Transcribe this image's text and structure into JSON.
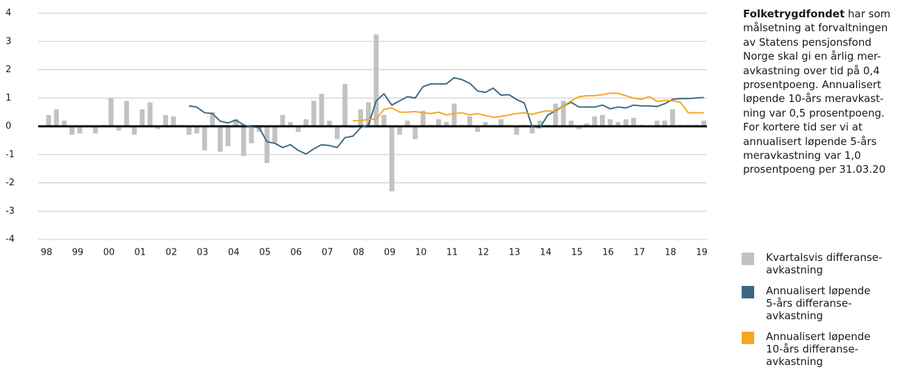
{
  "chart_data": {
    "type": "bar",
    "categories": [
      "98",
      null,
      null,
      null,
      "99",
      null,
      null,
      null,
      "00",
      null,
      null,
      null,
      "01",
      null,
      null,
      null,
      "02",
      null,
      null,
      null,
      "03",
      null,
      null,
      null,
      "04",
      null,
      null,
      null,
      "05",
      null,
      null,
      null,
      "06",
      null,
      null,
      null,
      "07",
      null,
      null,
      null,
      "08",
      null,
      null,
      null,
      "09",
      null,
      null,
      null,
      "10",
      null,
      null,
      null,
      "11",
      null,
      null,
      null,
      "12",
      null,
      null,
      null,
      "13",
      null,
      null,
      null,
      "14",
      null,
      null,
      null,
      "15",
      null,
      null,
      null,
      "16",
      null,
      null,
      null,
      "17",
      null,
      null,
      null,
      "18",
      null,
      null,
      null,
      "19"
    ],
    "series": [
      {
        "name": "Kvartalsvis differanse-\navkastning",
        "type": "bar",
        "color": "#c2c2c2",
        "values": [
          0.4,
          0.6,
          0.2,
          -0.3,
          -0.25,
          0,
          -0.25,
          0.05,
          1.0,
          -0.15,
          0.9,
          -0.3,
          0.6,
          0.85,
          -0.1,
          0.4,
          0.35,
          0.05,
          -0.3,
          -0.25,
          -0.85,
          0.5,
          -0.9,
          -0.7,
          0.25,
          -1.05,
          -0.6,
          -0.2,
          -1.3,
          -0.6,
          0.4,
          0.15,
          -0.2,
          0.25,
          0.9,
          1.15,
          0.2,
          -0.45,
          1.5,
          -0.05,
          0.6,
          0.85,
          3.25,
          0.4,
          -2.3,
          -0.3,
          0.2,
          -0.45,
          0.55,
          0.05,
          0.25,
          0.15,
          0.8,
          0.05,
          0.35,
          -0.2,
          0.15,
          0.05,
          0.25,
          0.05,
          -0.3,
          0.05,
          -0.25,
          0.2,
          0.05,
          0.8,
          0.9,
          0.2,
          -0.1,
          0.1,
          0.35,
          0.4,
          0.25,
          0.15,
          0.25,
          0.3,
          0.05,
          0,
          0.2,
          0.2,
          0.6,
          0.05,
          0.05,
          0.05,
          0.2
        ]
      },
      {
        "name": "Annualisert løpende\n5-års differanse-\navkastning",
        "type": "line",
        "color": "#3d6882",
        "values": [
          null,
          null,
          null,
          null,
          null,
          null,
          null,
          null,
          null,
          null,
          null,
          null,
          null,
          null,
          null,
          null,
          null,
          null,
          0.72,
          0.68,
          0.48,
          0.45,
          0.18,
          0.12,
          0.22,
          0.05,
          -0.02,
          -0.05,
          -0.55,
          -0.6,
          -0.75,
          -0.65,
          -0.85,
          -0.98,
          -0.8,
          -0.65,
          -0.68,
          -0.75,
          -0.4,
          -0.35,
          -0.05,
          0.05,
          0.9,
          1.15,
          0.75,
          0.9,
          1.05,
          1.0,
          1.4,
          1.5,
          1.5,
          1.5,
          1.72,
          1.65,
          1.52,
          1.25,
          1.2,
          1.35,
          1.1,
          1.12,
          0.95,
          0.82,
          -0.02,
          -0.05,
          0.4,
          0.55,
          0.72,
          0.85,
          0.68,
          0.68,
          0.68,
          0.75,
          0.62,
          0.68,
          0.65,
          0.75,
          0.72,
          0.72,
          0.7,
          0.8,
          0.95,
          0.98,
          0.98,
          1.0,
          1.02
        ]
      },
      {
        "name": "Annualisert løpende\n10-års differanse-\navkastning",
        "type": "line",
        "color": "#f5a623",
        "values": [
          null,
          null,
          null,
          null,
          null,
          null,
          null,
          null,
          null,
          null,
          null,
          null,
          null,
          null,
          null,
          null,
          null,
          null,
          null,
          null,
          null,
          null,
          null,
          null,
          null,
          null,
          null,
          null,
          null,
          null,
          null,
          null,
          null,
          null,
          null,
          null,
          null,
          null,
          null,
          0.2,
          0.2,
          0.25,
          0.25,
          0.6,
          0.65,
          0.5,
          0.5,
          0.52,
          0.48,
          0.45,
          0.5,
          0.4,
          0.45,
          0.48,
          0.4,
          0.45,
          0.38,
          0.32,
          0.35,
          0.4,
          0.45,
          0.48,
          0.42,
          0.5,
          0.55,
          0.52,
          0.72,
          0.9,
          1.05,
          1.08,
          1.08,
          1.12,
          1.17,
          1.17,
          1.08,
          1.0,
          0.95,
          1.05,
          0.88,
          0.92,
          0.9,
          0.85,
          0.48,
          0.48,
          0.48
        ]
      }
    ],
    "ylim": [
      -4,
      4
    ],
    "yticks": [
      -4,
      -3,
      -2,
      -1,
      0,
      1,
      2,
      3,
      4
    ],
    "grid": true,
    "annotation": {
      "bold": "Folketrygdfondet",
      "lines": [
        " har som",
        "målsetning at forvaltningen",
        "av Statens pensjonsfond",
        "Norge skal gi en årlig mer-",
        "avkastning over tid på 0,4",
        "prosentpoeng. Annualisert",
        "løpende 10-års meravkast-",
        "ning var 0,5 prosentpoeng.",
        "For kortere tid ser vi at",
        "annualisert løpende 5-års",
        "meravkastning var 1,0",
        "prosentpoeng per 31.03.20"
      ]
    }
  }
}
